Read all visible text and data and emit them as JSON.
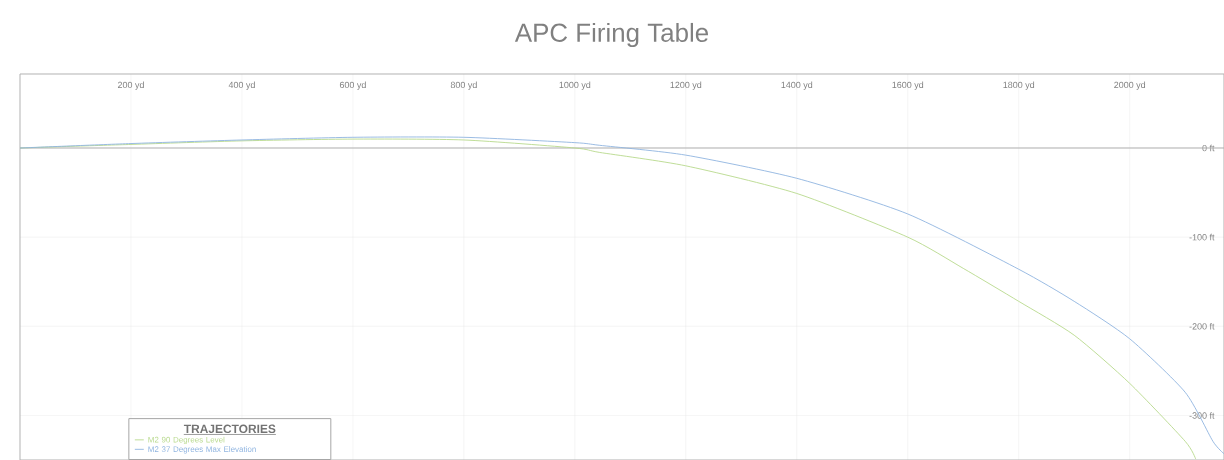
{
  "chart_data": {
    "type": "line",
    "title": "APC Firing Table",
    "legend_title": "TRAJECTORIES",
    "series": [
      {
        "name": "M2 90 Degrees Level",
        "color": "#b7d98c",
        "x": [
          0,
          200,
          400,
          600,
          800,
          1000,
          1045,
          1200,
          1400,
          1600,
          1700,
          1800,
          1900,
          2000,
          2100,
          2119
        ],
        "values": [
          0,
          4,
          8,
          10,
          9,
          0,
          -5,
          -20,
          -51,
          -100,
          -135,
          -172,
          -210,
          -264,
          -329,
          -349
        ]
      },
      {
        "name": "M2 37 Degrees Max Elevation",
        "color": "#8fb4e0",
        "x": [
          0,
          200,
          400,
          600,
          800,
          1000,
          1045,
          1200,
          1400,
          1600,
          1800,
          1900,
          2000,
          2100,
          2150,
          2170
        ],
        "values": [
          0,
          5,
          9,
          12,
          12,
          6,
          3,
          -8,
          -34,
          -74,
          -136,
          -172,
          -214,
          -274,
          -329,
          -343
        ]
      }
    ],
    "xlim": [
      0,
      2170
    ],
    "ylim": [
      -350,
      83
    ],
    "xticks": [
      {
        "value": 200,
        "label": "200 yd"
      },
      {
        "value": 400,
        "label": "400 yd"
      },
      {
        "value": 600,
        "label": "600 yd"
      },
      {
        "value": 800,
        "label": "800 yd"
      },
      {
        "value": 1000,
        "label": "1000 yd"
      },
      {
        "value": 1200,
        "label": "1200 yd"
      },
      {
        "value": 1400,
        "label": "1400 yd"
      },
      {
        "value": 1600,
        "label": "1600 yd"
      },
      {
        "value": 1800,
        "label": "1800 yd"
      },
      {
        "value": 2000,
        "label": "2000 yd"
      }
    ],
    "yticks": [
      {
        "value": 0,
        "label": "0 ft"
      },
      {
        "value": -100,
        "label": "-100 ft"
      },
      {
        "value": -200,
        "label": "-200 ft"
      },
      {
        "value": -300,
        "label": "-300 ft"
      }
    ],
    "grid": true,
    "legend": "bottom left",
    "marker": "none",
    "line_style": "solid"
  }
}
